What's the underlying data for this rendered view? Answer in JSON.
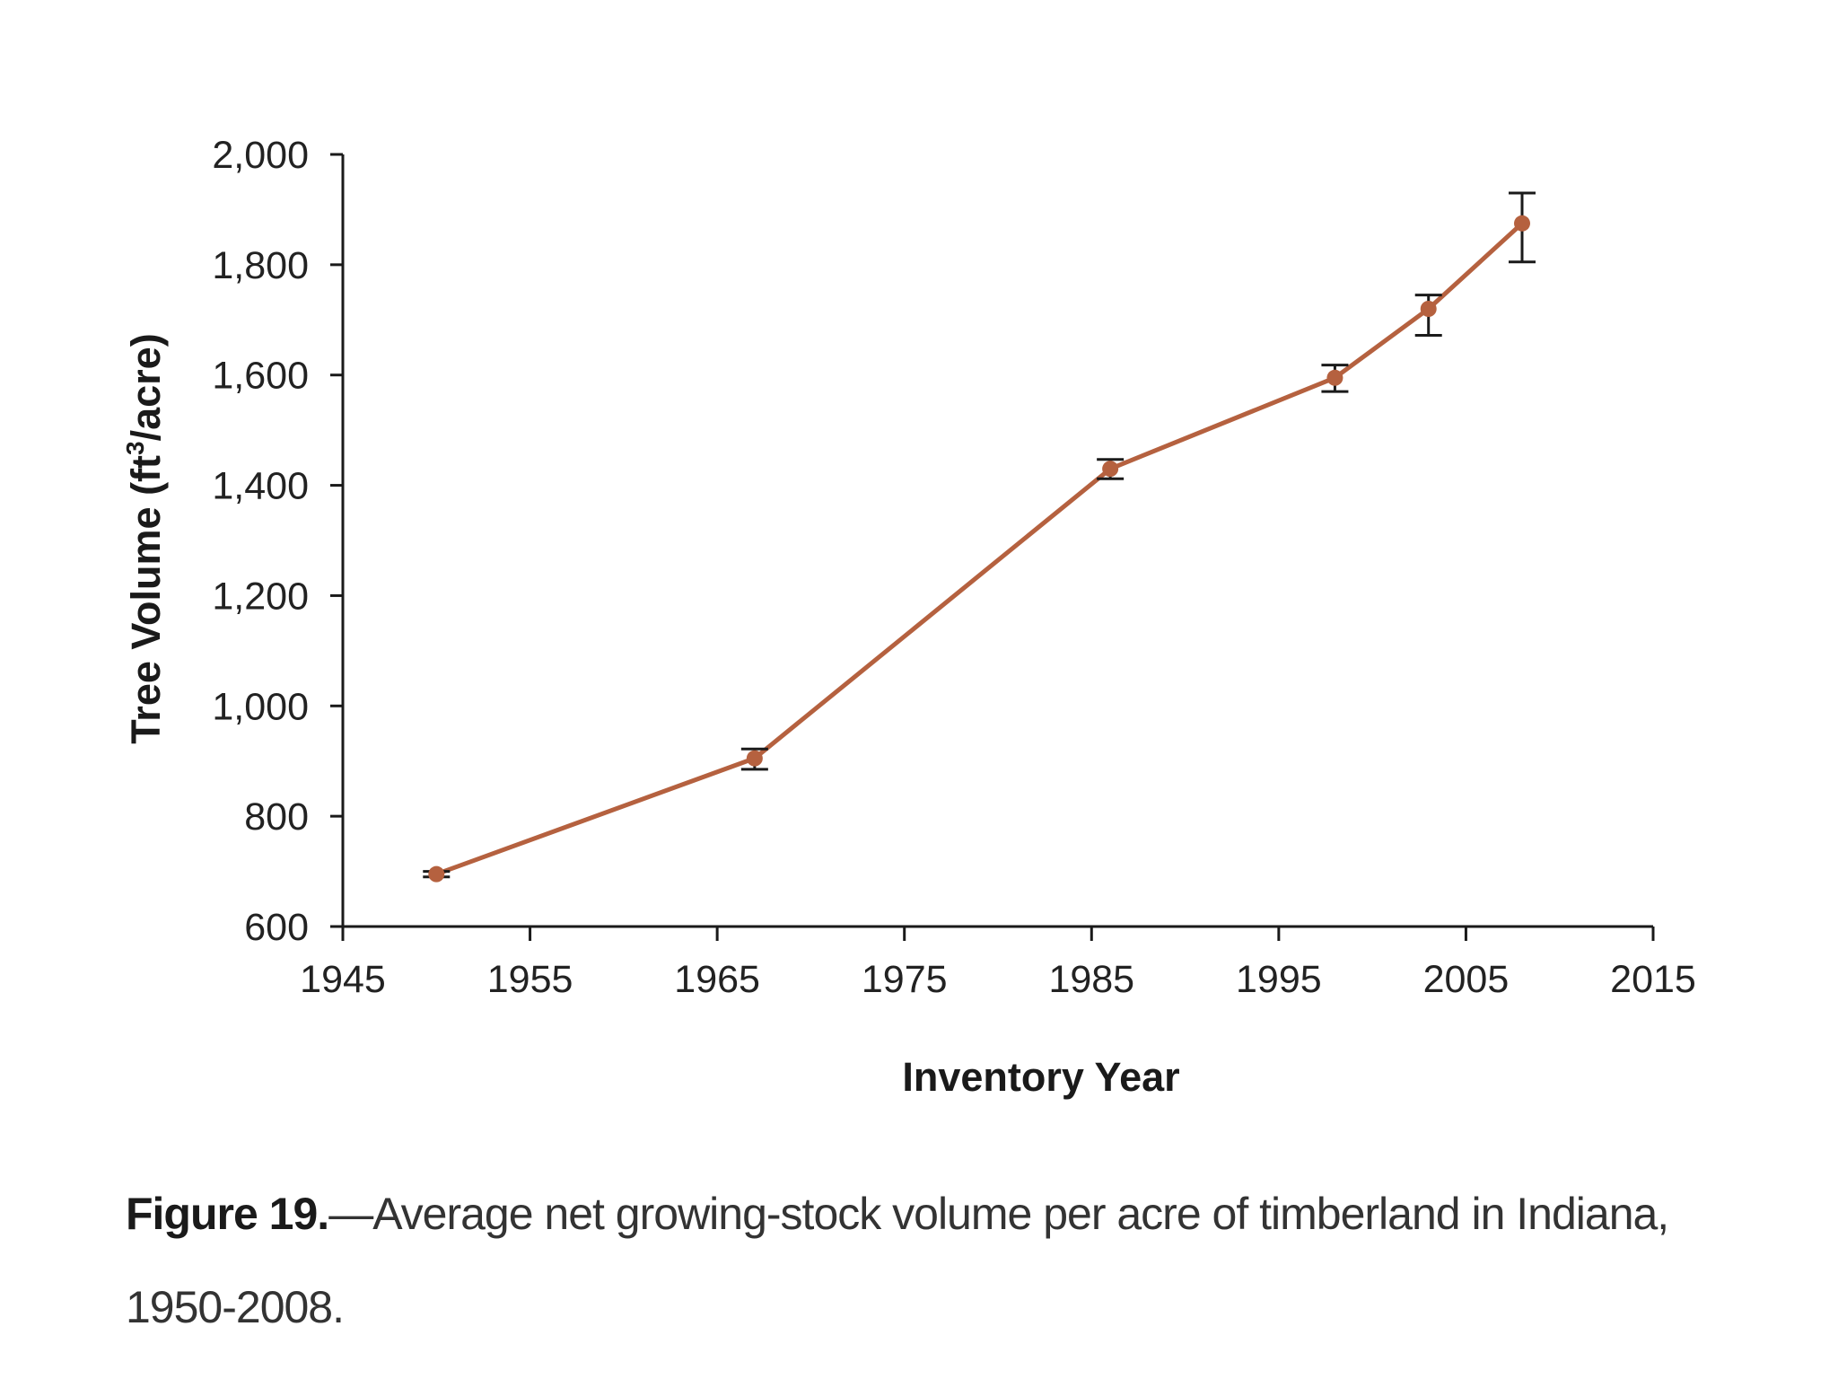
{
  "chart_data": {
    "type": "line",
    "title": "",
    "xlabel": "Inventory Year",
    "ylabel_main": "Tree Volume (ft",
    "ylabel_sup": "3",
    "ylabel_tail": "/acre)",
    "xlim": [
      1945,
      2015
    ],
    "ylim": [
      600,
      2000
    ],
    "x_ticks": [
      1945,
      1955,
      1965,
      1975,
      1985,
      1995,
      2005,
      2015
    ],
    "x_tick_labels": [
      "1945",
      "1955",
      "1965",
      "1975",
      "1985",
      "1995",
      "2005",
      "2015"
    ],
    "y_ticks": [
      600,
      800,
      1000,
      1200,
      1400,
      1600,
      1800,
      2000
    ],
    "y_tick_labels": [
      "600",
      "800",
      "1,000",
      "1,200",
      "1,400",
      "1,600",
      "1,800",
      "2,000"
    ],
    "series": [
      {
        "name": "Average net growing-stock volume per acre",
        "color": "#b5613f",
        "x": [
          1950,
          1967,
          1986,
          1998,
          2003,
          2008
        ],
        "y": [
          695,
          905,
          1430,
          1595,
          1720,
          1875
        ],
        "err_low": [
          690,
          885,
          1412,
          1570,
          1672,
          1805
        ],
        "err_high": [
          700,
          922,
          1447,
          1618,
          1745,
          1930
        ]
      }
    ]
  },
  "caption": {
    "label": "Figure 19.",
    "text": "—Average net growing-stock volume per acre of timberland in Indiana, 1950-2008."
  },
  "colors": {
    "line": "#b5613f",
    "axis": "#1a1a1a",
    "errorbar": "#1a1a1a"
  }
}
